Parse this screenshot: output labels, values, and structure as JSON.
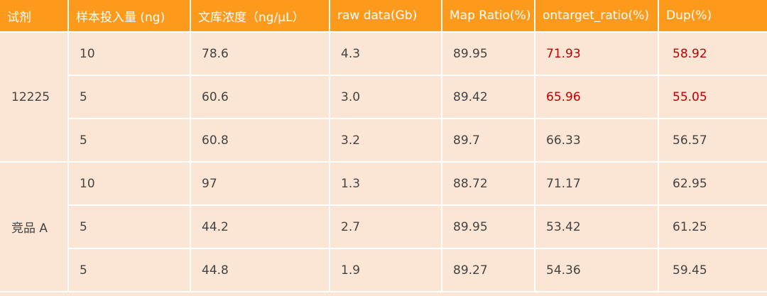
{
  "table": {
    "headers": [
      "试剂",
      "样本投入量 (ng)",
      "文库浓度（ng/μL）",
      "raw data(Gb)",
      "Map Ratio(%)",
      "ontarget_ratio(%)",
      "Dup(%)"
    ],
    "groups": [
      {
        "reagent": "12225",
        "rows": [
          {
            "input": "10",
            "conc": "78.6",
            "raw": "4.3",
            "map": "89.95",
            "ontarget": "71.93",
            "dup": "58.92"
          },
          {
            "input": "5",
            "conc": "60.6",
            "raw": "3.0",
            "map": "89.42",
            "ontarget": "65.96",
            "dup": "55.05"
          },
          {
            "input": "5",
            "conc": "60.8",
            "raw": "3.2",
            "map": "89.7",
            "ontarget": "66.33",
            "dup": "56.57"
          }
        ]
      },
      {
        "reagent": "竞品 A",
        "rows": [
          {
            "input": "10",
            "conc": "97",
            "raw": "1.3",
            "map": "88.72",
            "ontarget": "71.17",
            "dup": "62.95"
          },
          {
            "input": "5",
            "conc": "44.2",
            "raw": "2.7",
            "map": "89.95",
            "ontarget": "53.42",
            "dup": "61.25"
          },
          {
            "input": "5",
            "conc": "44.8",
            "raw": "1.9",
            "map": "89.27",
            "ontarget": "54.36",
            "dup": "59.45"
          }
        ]
      }
    ],
    "colors": {
      "header_bg": "#fd9a1c",
      "header_text": "#ffffff",
      "cell_bg": "#fbe5d4",
      "cell_text": "#444444",
      "highlight_text": "#c00000"
    }
  }
}
